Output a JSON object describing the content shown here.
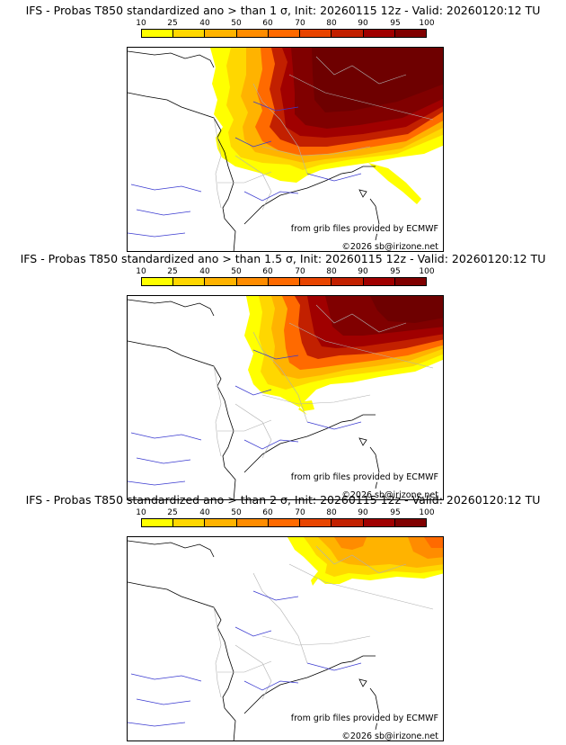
{
  "colorbar": {
    "ticks": [
      "10",
      "25",
      "40",
      "50",
      "60",
      "70",
      "80",
      "90",
      "95",
      "100"
    ],
    "colors": [
      "#ffff00",
      "#ffd700",
      "#ffb300",
      "#ff8c00",
      "#ff6a00",
      "#e84400",
      "#c22000",
      "#a00000",
      "#800000"
    ]
  },
  "panels": [
    {
      "title": "IFS - Probas T850  standardized ano > than 1 σ, Init: 20260115 12z - Valid: 20260120:12 TU",
      "credit_grib": "from grib files provided by ECMWF",
      "credit_copy": "©2026 sb@irizone.net"
    },
    {
      "title": "IFS - Probas T850  standardized ano > than 1.5 σ, Init: 20260115 12z - Valid: 20260120:12 TU",
      "credit_grib": "from grib files provided by ECMWF",
      "credit_copy": "©2026 sb@irizone.net"
    },
    {
      "title": "IFS - Probas T850  standardized ano > than 2 σ, Init: 20260115 12z - Valid: 20260120:12 TU",
      "credit_grib": "from grib files provided by ECMWF",
      "credit_copy": "©2026 sb@irizone.net"
    }
  ]
}
